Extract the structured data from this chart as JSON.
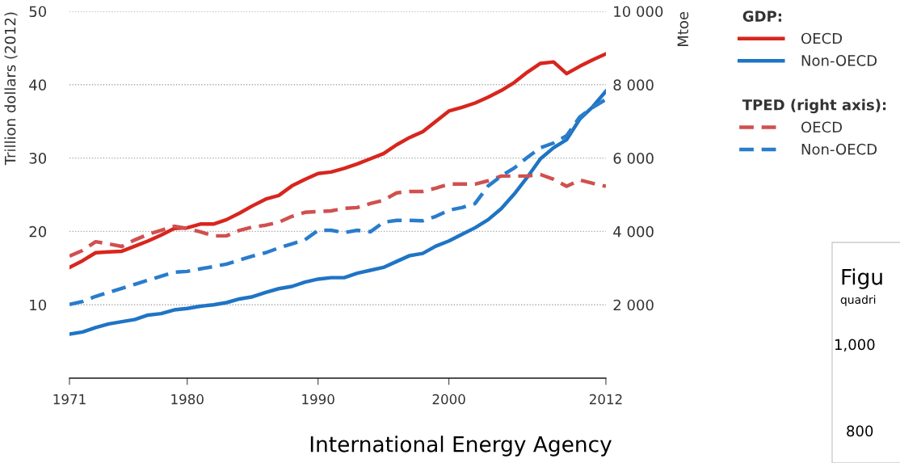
{
  "chart_data": {
    "type": "line",
    "ylabel": "Trillion dollars (2012)",
    "y2label": "Mtoe",
    "legend_title": "GDP:",
    "x": [
      1971,
      1972,
      1973,
      1974,
      1975,
      1976,
      1977,
      1978,
      1979,
      1980,
      1981,
      1982,
      1983,
      1984,
      1985,
      1986,
      1987,
      1988,
      1989,
      1990,
      1991,
      1992,
      1993,
      1994,
      1995,
      1996,
      1997,
      1998,
      1999,
      2000,
      2001,
      2002,
      2003,
      2004,
      2005,
      2006,
      2007,
      2008,
      2009,
      2010,
      2011,
      2012
    ],
    "series": [
      {
        "name": "OECD",
        "color": "#d7261e",
        "line_style": "solid",
        "values": [
          15.1,
          16.0,
          17.1,
          17.2,
          17.3,
          18.0,
          18.7,
          19.5,
          20.4,
          20.5,
          21.0,
          21.0,
          21.6,
          22.5,
          23.5,
          24.4,
          24.9,
          26.2,
          27.1,
          27.9,
          28.1,
          28.6,
          29.2,
          29.9,
          30.6,
          31.8,
          32.8,
          33.6,
          35.0,
          36.4,
          36.9,
          37.5,
          38.3,
          39.2,
          40.3,
          41.7,
          42.9,
          43.1,
          41.5,
          42.5,
          43.4,
          44.2
        ]
      },
      {
        "name": "Non-OECD",
        "color": "#1f74c4",
        "line_style": "solid",
        "values": [
          6.0,
          6.3,
          6.9,
          7.4,
          7.7,
          8.0,
          8.6,
          8.8,
          9.3,
          9.5,
          9.8,
          10.0,
          10.3,
          10.8,
          11.1,
          11.7,
          12.2,
          12.5,
          13.1,
          13.5,
          13.7,
          13.7,
          14.3,
          14.7,
          15.1,
          15.9,
          16.7,
          17.0,
          18.0,
          18.7,
          19.6,
          20.5,
          21.6,
          23.1,
          25.1,
          27.4,
          29.9,
          31.4,
          32.5,
          35.3,
          37.0,
          39.1
        ]
      },
      {
        "name": "OECD",
        "color": "#d0504f",
        "line_style": "dashed",
        "axis": "y2",
        "values": [
          3330,
          3480,
          3720,
          3660,
          3590,
          3770,
          3920,
          4030,
          4140,
          4080,
          3990,
          3880,
          3880,
          4030,
          4120,
          4170,
          4250,
          4410,
          4520,
          4540,
          4560,
          4630,
          4650,
          4760,
          4850,
          5050,
          5090,
          5090,
          5180,
          5290,
          5290,
          5290,
          5380,
          5510,
          5510,
          5510,
          5550,
          5420,
          5230,
          5400,
          5310,
          5230
        ]
      },
      {
        "name": "Non-OECD",
        "color": "#2a7ccc",
        "line_style": "dashed",
        "axis": "y2",
        "values": [
          2010,
          2090,
          2230,
          2340,
          2450,
          2560,
          2670,
          2780,
          2890,
          2910,
          2980,
          3040,
          3110,
          3220,
          3330,
          3420,
          3550,
          3660,
          3770,
          4030,
          4030,
          3970,
          4030,
          3990,
          4250,
          4300,
          4300,
          4290,
          4410,
          4580,
          4650,
          4760,
          5240,
          5510,
          5730,
          6020,
          6280,
          6410,
          6610,
          7120,
          7380,
          7600
        ]
      }
    ],
    "xlim": [
      1971,
      2012
    ],
    "xticks": [
      1971,
      1980,
      1990,
      2000,
      2012
    ],
    "ylim": [
      0,
      50
    ],
    "yticks": [
      10,
      20,
      30,
      40,
      50
    ],
    "y2lim": [
      0,
      10000
    ],
    "y2ticks": [
      {
        "value": 2000,
        "label": "2 000"
      },
      {
        "value": 4000,
        "label": "4 000"
      },
      {
        "value": 6000,
        "label": "6 000"
      },
      {
        "value": 8000,
        "label": "8 000"
      },
      {
        "value": 10000,
        "label": "10 000"
      }
    ],
    "grid": "y",
    "legend": "right",
    "marker": "none",
    "annotations": [
      "TPED (right axis):",
      "International Energy Agency",
      "Figu",
      "quadri",
      "1,000",
      "800"
    ]
  }
}
